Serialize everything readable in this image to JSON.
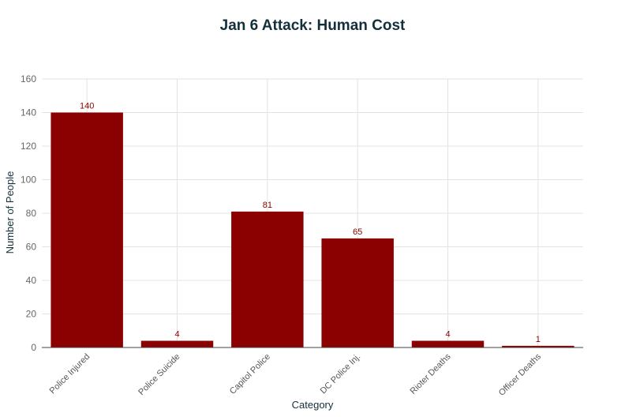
{
  "chart_data": {
    "type": "bar",
    "title": "Jan 6 Attack: Human Cost",
    "xlabel": "Category",
    "ylabel": "Number of People",
    "categories": [
      "Police Injured",
      "Police Suicide",
      "Capitol Police",
      "DC Police Inj.",
      "Rioter Deaths",
      "Officer Deaths"
    ],
    "values": [
      140,
      4,
      81,
      65,
      4,
      1
    ],
    "data_labels": [
      "140",
      "4",
      "81",
      "65",
      "4",
      "1"
    ],
    "ylim": [
      0,
      160
    ],
    "yticks": [
      0,
      20,
      40,
      60,
      80,
      100,
      120,
      140,
      160
    ],
    "grid": true,
    "bar_color": "#8b0000",
    "label_color": "#8b0000"
  }
}
